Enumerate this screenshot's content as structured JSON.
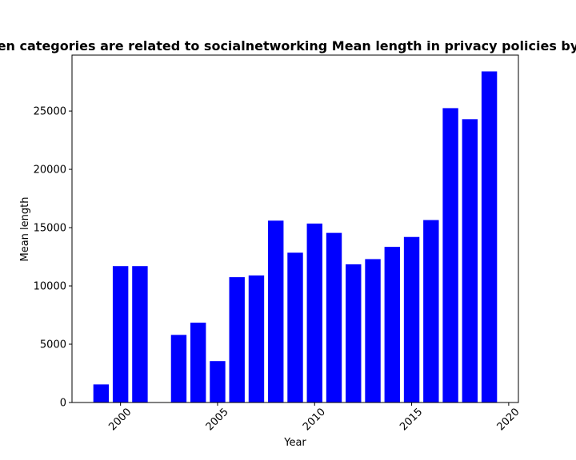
{
  "chart_data": {
    "type": "bar",
    "title": "en categories are related to socialnetworking Mean length in privacy policies by",
    "xlabel": "Year",
    "ylabel": "Mean length",
    "x": [
      1999,
      2000,
      2001,
      2003,
      2004,
      2005,
      2006,
      2007,
      2008,
      2009,
      2010,
      2011,
      2012,
      2013,
      2014,
      2015,
      2016,
      2017,
      2018,
      2019
    ],
    "values": [
      1550,
      11700,
      11700,
      5800,
      6850,
      3550,
      10750,
      10900,
      15600,
      12850,
      15350,
      14550,
      11850,
      12300,
      13350,
      14200,
      15650,
      25250,
      24300,
      28400
    ],
    "xlim": [
      1997.5,
      2020.5
    ],
    "ylim": [
      0,
      29800
    ],
    "xticks": [
      2000,
      2005,
      2010,
      2015,
      2020
    ],
    "yticks": [
      0,
      5000,
      10000,
      15000,
      20000,
      25000
    ],
    "bar_color": "#0000ff",
    "grid": false,
    "legend": "none"
  }
}
